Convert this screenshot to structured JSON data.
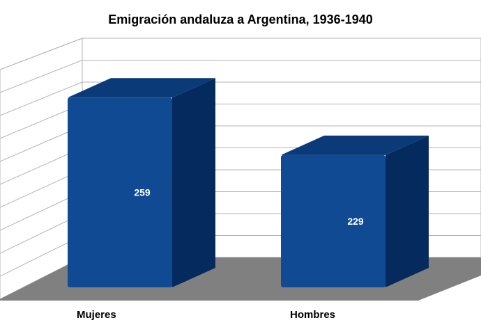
{
  "chart_data": {
    "type": "bar",
    "title": "Emigración andaluza a Argentina, 1936-1940",
    "categories": [
      "Mujeres",
      "Hombres"
    ],
    "values": [
      259,
      229
    ],
    "data_labels": [
      "259",
      "229"
    ],
    "xlabel": "",
    "ylabel": "",
    "ylim": [
      160,
      270
    ],
    "grid": true,
    "legend": "none",
    "three_d": true,
    "colors": {
      "bar_front": "#0f4a93",
      "bar_side": "#052a5e",
      "bar_top": "#0a3a78",
      "floor": "#808080",
      "grid": "#b3b3b3"
    }
  }
}
